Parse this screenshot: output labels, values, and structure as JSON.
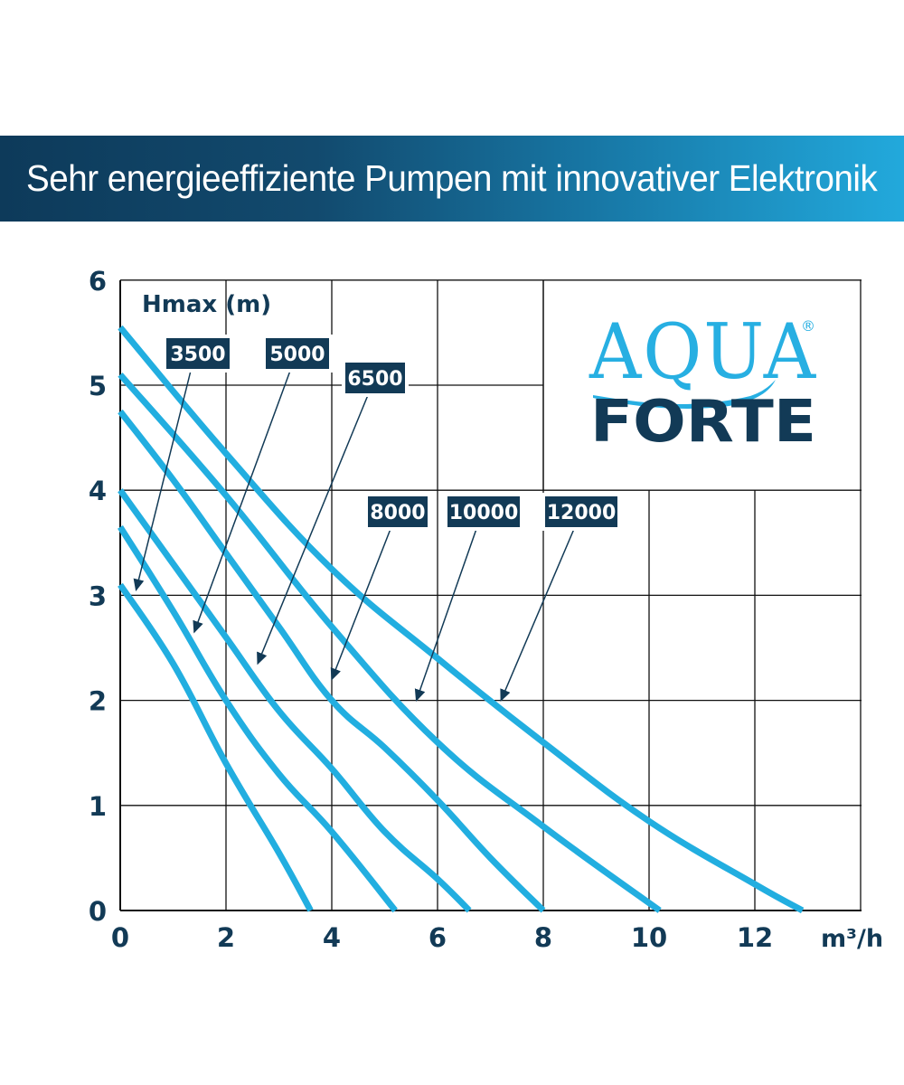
{
  "banner": {
    "title": "Sehr energieeffiziente Pumpen mit innovativer Elektronik"
  },
  "logo": {
    "top": "AQUA",
    "bottom": "FORTE",
    "registered": "®"
  },
  "colors": {
    "curve": "#22aee0",
    "navy": "#123a56",
    "grid": "#111111"
  },
  "chart_data": {
    "type": "line",
    "ylabel": "Hmax (m)",
    "xlabel": "m³/h",
    "xlim": [
      0,
      14
    ],
    "ylim": [
      0,
      6
    ],
    "xticks": [
      "0",
      "2",
      "4",
      "6",
      "8",
      "10",
      "12"
    ],
    "yticks": [
      "0",
      "1",
      "2",
      "3",
      "4",
      "5",
      "6"
    ],
    "grid": true,
    "series": [
      {
        "name": "3500",
        "points": [
          [
            0,
            3.1
          ],
          [
            1,
            2.35
          ],
          [
            2,
            1.4
          ],
          [
            3,
            0.55
          ],
          [
            3.6,
            0
          ]
        ],
        "label_at": [
          0.3,
          3.05
        ]
      },
      {
        "name": "5000",
        "points": [
          [
            0,
            3.65
          ],
          [
            1,
            2.85
          ],
          [
            2,
            2.0
          ],
          [
            3,
            1.3
          ],
          [
            4,
            0.75
          ],
          [
            5.2,
            0
          ]
        ],
        "label_at": [
          1.4,
          2.65
        ]
      },
      {
        "name": "6500",
        "points": [
          [
            0,
            4.0
          ],
          [
            1,
            3.3
          ],
          [
            2,
            2.6
          ],
          [
            3,
            1.9
          ],
          [
            4,
            1.35
          ],
          [
            5,
            0.75
          ],
          [
            6,
            0.3
          ],
          [
            6.6,
            0
          ]
        ],
        "label_at": [
          2.6,
          2.35
        ]
      },
      {
        "name": "8000",
        "points": [
          [
            0,
            4.75
          ],
          [
            1,
            4.1
          ],
          [
            2,
            3.4
          ],
          [
            3,
            2.7
          ],
          [
            4,
            2.0
          ],
          [
            5,
            1.55
          ],
          [
            6,
            1.05
          ],
          [
            7,
            0.5
          ],
          [
            8,
            0
          ]
        ],
        "label_at": [
          4.0,
          2.2
        ]
      },
      {
        "name": "10000",
        "points": [
          [
            0,
            5.1
          ],
          [
            2,
            3.95
          ],
          [
            4,
            2.7
          ],
          [
            6,
            1.6
          ],
          [
            8,
            0.8
          ],
          [
            10.2,
            0
          ]
        ],
        "label_at": [
          5.6,
          2.0
        ]
      },
      {
        "name": "12000",
        "points": [
          [
            0,
            5.55
          ],
          [
            2,
            4.35
          ],
          [
            4,
            3.25
          ],
          [
            6,
            2.4
          ],
          [
            8,
            1.6
          ],
          [
            10,
            0.85
          ],
          [
            12,
            0.25
          ],
          [
            12.9,
            0
          ]
        ],
        "label_at": [
          7.2,
          2.0
        ]
      }
    ],
    "label_boxes": [
      {
        "name": "3500",
        "row": 1
      },
      {
        "name": "5000",
        "row": 1
      },
      {
        "name": "6500",
        "row": 2
      },
      {
        "name": "8000",
        "row": 3
      },
      {
        "name": "10000",
        "row": 3
      },
      {
        "name": "12000",
        "row": 3
      }
    ]
  }
}
